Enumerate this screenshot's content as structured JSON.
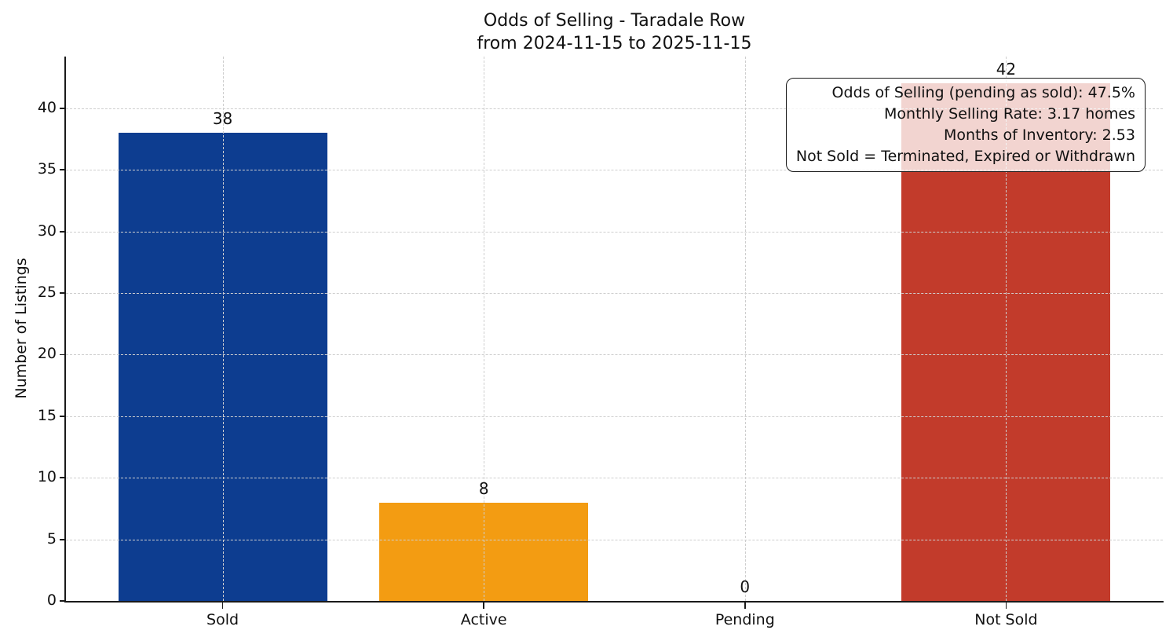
{
  "chart_data": {
    "type": "bar",
    "title": "Odds of Selling - Taradale Row",
    "subtitle": "from 2024-11-15 to 2025-11-15",
    "xlabel": "",
    "ylabel": "Number of Listings",
    "categories": [
      "Sold",
      "Active",
      "Pending",
      "Not Sold"
    ],
    "values": [
      38,
      8,
      0,
      42
    ],
    "bar_value_labels": [
      "38",
      "8",
      "0",
      "42"
    ],
    "bar_colors": [
      "#0d3d90",
      "#f39c12",
      null,
      "#c23b2b"
    ],
    "yticks": [
      0,
      5,
      10,
      15,
      20,
      25,
      30,
      35,
      40
    ],
    "ylim": [
      0,
      44.2
    ],
    "grid": "dashed light-gray, horizontal at y-ticks and vertical at category centers, drawn above bars",
    "legend": "none",
    "annotation_box": {
      "position": "top-right",
      "lines": [
        "Odds of Selling (pending as sold): 47.5%",
        "Monthly Selling Rate: 3.17 homes",
        "Months of Inventory: 2.53",
        "Not Sold = Terminated, Expired or Withdrawn"
      ]
    },
    "colors": {
      "axis": "#1a1a1a",
      "grid": "#cecece",
      "text": "#111111",
      "annotation_background": "rgba(255,255,255,0.78)",
      "sold_bar": "#0d3d90",
      "active_bar": "#f39c12",
      "not_sold_bar": "#c23b2b"
    }
  }
}
